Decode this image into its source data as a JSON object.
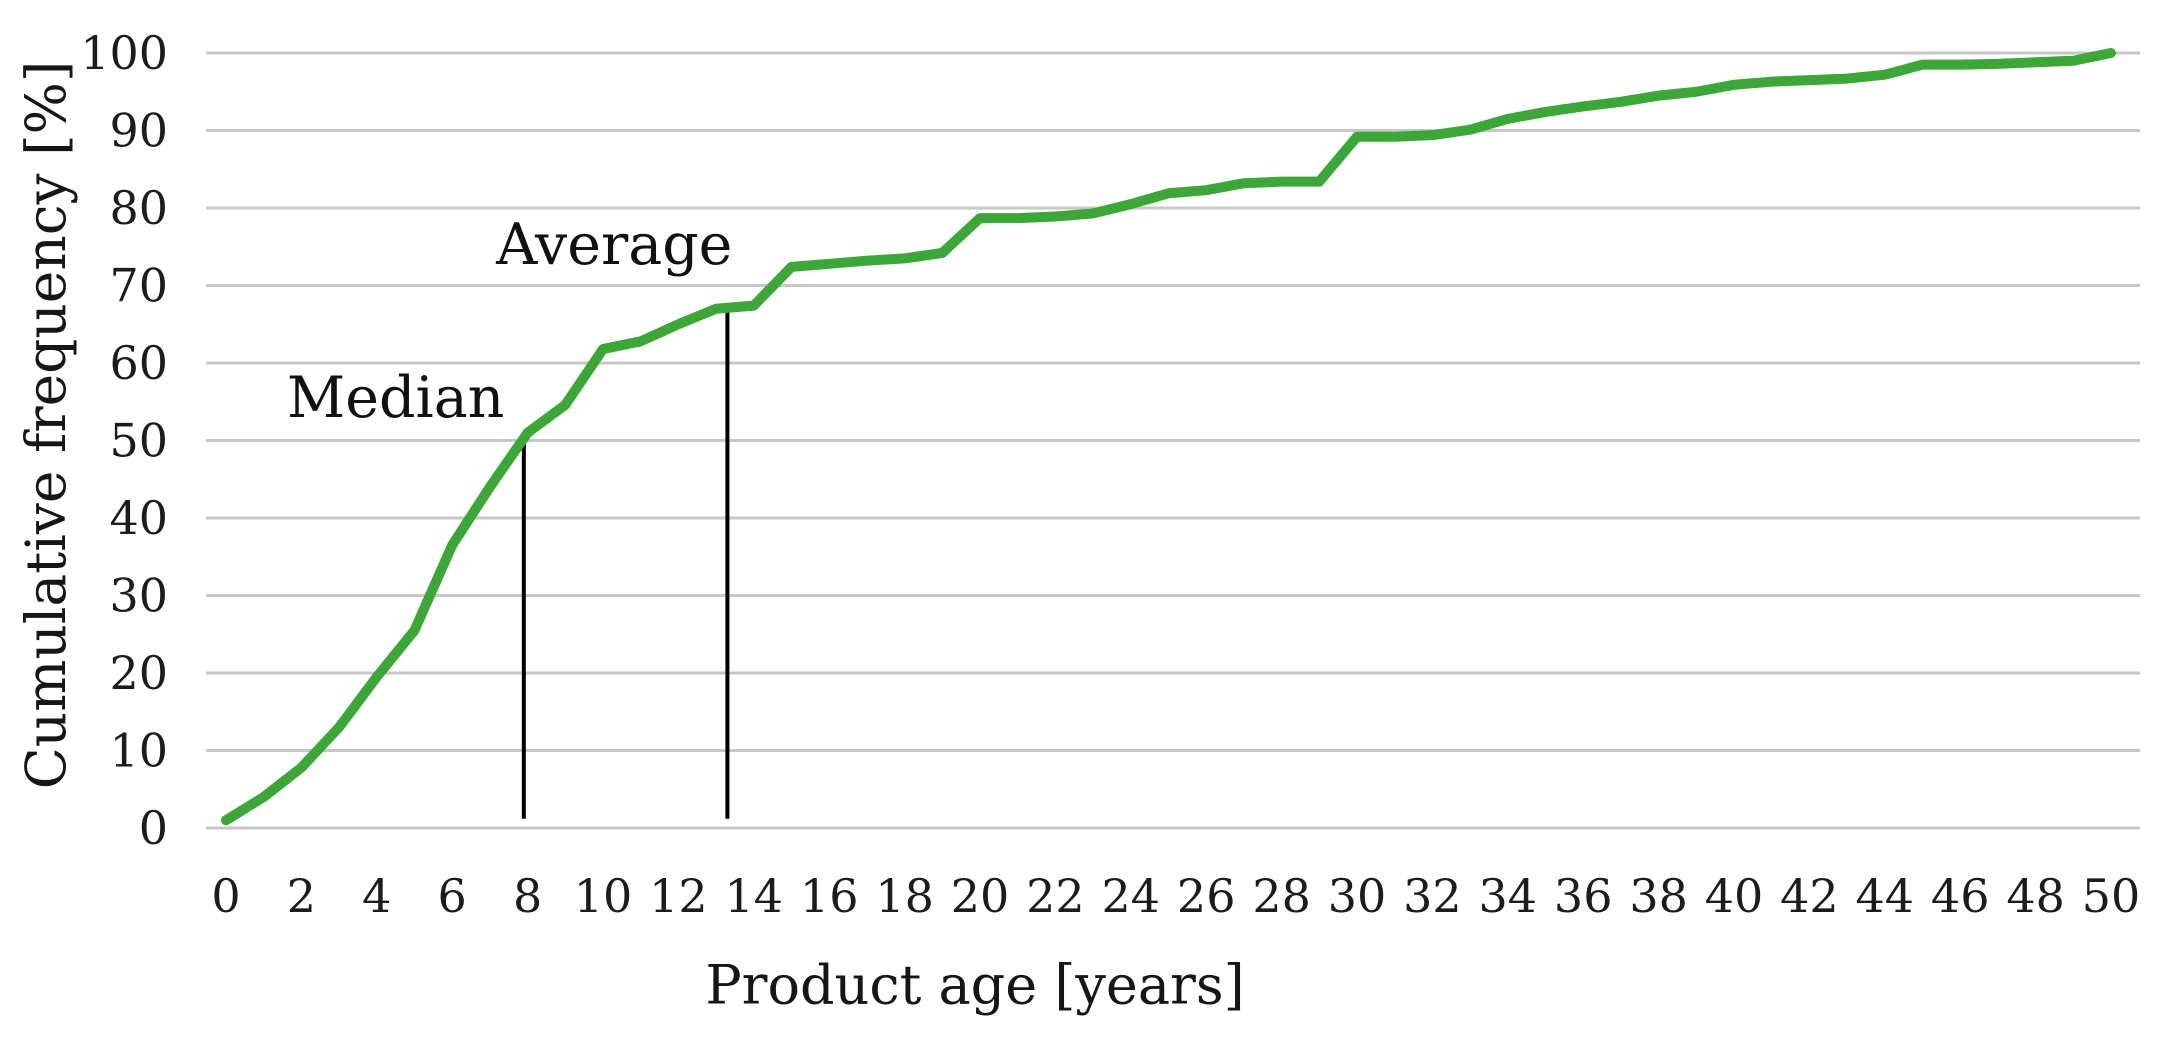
{
  "chart_data": {
    "type": "line",
    "title": "",
    "xlabel": "Product age [years]",
    "ylabel": "Cumulative frequency [%]",
    "xlim": [
      0,
      50
    ],
    "ylim": [
      0,
      100
    ],
    "x_ticks": [
      0,
      2,
      4,
      6,
      8,
      10,
      12,
      14,
      16,
      18,
      20,
      22,
      24,
      26,
      28,
      30,
      32,
      34,
      36,
      38,
      40,
      42,
      44,
      46,
      48,
      50
    ],
    "y_ticks": [
      0,
      10,
      20,
      30,
      40,
      50,
      60,
      70,
      80,
      90,
      100
    ],
    "grid": "horizontal",
    "legend": "none",
    "series": [
      {
        "name": "Cumulative frequency",
        "color": "#3aa737",
        "x": [
          0,
          1,
          2,
          3,
          4,
          5,
          6,
          7,
          8,
          9,
          10,
          11,
          12,
          13,
          14,
          15,
          16,
          17,
          18,
          19,
          20,
          21,
          22,
          23,
          24,
          25,
          26,
          27,
          28,
          29,
          30,
          31,
          32,
          33,
          34,
          35,
          36,
          37,
          38,
          39,
          40,
          41,
          42,
          43,
          44,
          45,
          46,
          47,
          48,
          49,
          50
        ],
        "values": [
          1,
          4,
          7.8,
          13,
          19.5,
          25.5,
          36.5,
          44,
          51,
          54.6,
          61.8,
          62.8,
          65,
          67,
          67.4,
          72.4,
          72.8,
          73.2,
          73.5,
          74.2,
          78.7,
          78.7,
          78.9,
          79.3,
          80.5,
          81.9,
          82.3,
          83.2,
          83.4,
          83.4,
          89.2,
          89.2,
          89.4,
          90.1,
          91.5,
          92.4,
          93.1,
          93.7,
          94.5,
          95,
          95.9,
          96.3,
          96.5,
          96.7,
          97.2,
          98.5,
          98.5,
          98.6,
          98.8,
          99,
          100
        ]
      }
    ],
    "annotations": [
      {
        "label": "Median",
        "line_x": 7.9,
        "line_y_bottom": 1.2,
        "line_y_top": 50,
        "label_x": 4.5,
        "label_y": 55.5
      },
      {
        "label": "Average",
        "line_x": 13.3,
        "line_y_bottom": 1.2,
        "line_y_top": 66.8,
        "label_x": 10.3,
        "label_y": 75.2
      }
    ],
    "colors": {
      "line": "#3aa737",
      "gridline": "#c7c7c7",
      "annotation_line": "#000000",
      "text": "#1c1c1c"
    }
  }
}
